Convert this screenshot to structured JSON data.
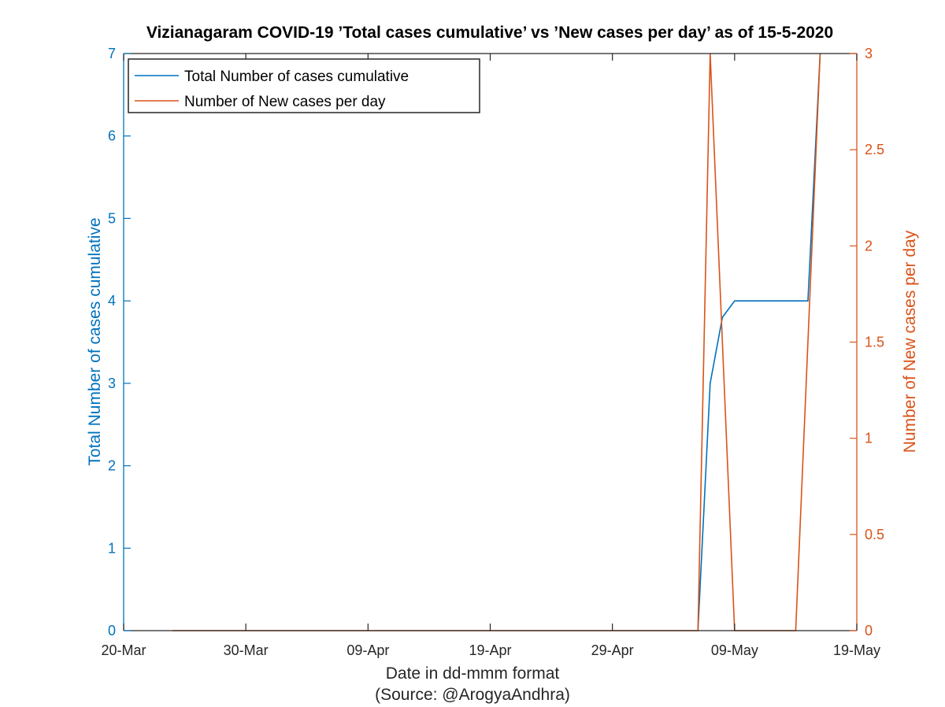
{
  "chart_data": {
    "type": "line",
    "title": "Vizianagaram COVID-19 ’Total cases cumulative’ vs ’New cases per day’ as of 15-5-2020",
    "xlabel": "Date in dd-mmm format",
    "source": "(Source: @ArogyaAndhra)",
    "x_ticks": [
      "20-Mar",
      "30-Mar",
      "09-Apr",
      "19-Apr",
      "29-Apr",
      "09-May",
      "19-May"
    ],
    "x_tick_dates": [
      "2020-03-20",
      "2020-03-30",
      "2020-04-09",
      "2020-04-19",
      "2020-04-29",
      "2020-05-09",
      "2020-05-19"
    ],
    "xlim": [
      "2020-03-20",
      "2020-05-19"
    ],
    "y_left": {
      "label": "Total Number of cases cumulative",
      "lim": [
        0,
        7
      ],
      "ticks": [
        "0",
        "1",
        "2",
        "3",
        "4",
        "5",
        "6",
        "7"
      ],
      "color": "#0072BD"
    },
    "y_right": {
      "label": "Number of New cases per day",
      "lim": [
        0,
        3
      ],
      "ticks": [
        "0",
        "0.5",
        "1",
        "1.5",
        "2",
        "2.5",
        "3"
      ],
      "color": "#D95319"
    },
    "legend_position": "top-left",
    "series": [
      {
        "name": "Total Number of cases cumulative",
        "axis": "left",
        "color": "#0072BD",
        "points": [
          [
            "2020-05-06",
            0
          ],
          [
            "2020-05-07",
            3
          ],
          [
            "2020-05-08",
            3.8
          ],
          [
            "2020-05-09",
            4
          ],
          [
            "2020-05-15",
            4
          ],
          [
            "2020-05-16",
            7
          ]
        ]
      },
      {
        "name": "Number of New cases per day",
        "axis": "right",
        "color": "#D95319",
        "points": [
          [
            "2020-03-24",
            0
          ],
          [
            "2020-05-06",
            0
          ],
          [
            "2020-05-07",
            3
          ],
          [
            "2020-05-09",
            0
          ],
          [
            "2020-05-14",
            0
          ],
          [
            "2020-05-16",
            3
          ]
        ]
      }
    ]
  }
}
